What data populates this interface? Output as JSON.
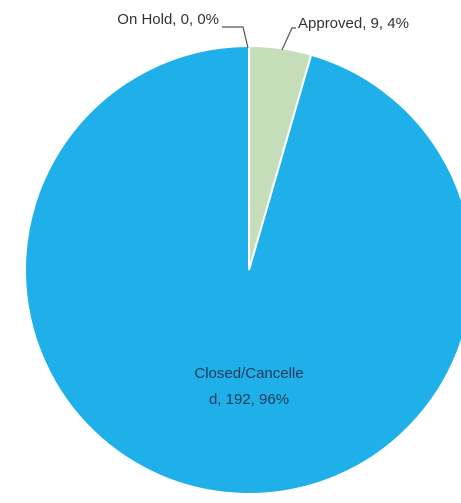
{
  "chart_data": {
    "type": "pie",
    "title": "",
    "slices": [
      {
        "label": "On Hold",
        "value": 0,
        "percent": "0%",
        "color": "#c6dcb9",
        "text": "On Hold, 0, 0%"
      },
      {
        "label": "Approved",
        "value": 9,
        "percent": "4%",
        "color": "#c5ddb8",
        "text": "Approved, 9, 4%"
      },
      {
        "label": "Closed/Cancelled",
        "value": 192,
        "percent": "96%",
        "color": "#1fb0ea",
        "text_line1": "Closed/Cancelle",
        "text_line2": "d, 192, 96%"
      }
    ],
    "legend": "none"
  }
}
